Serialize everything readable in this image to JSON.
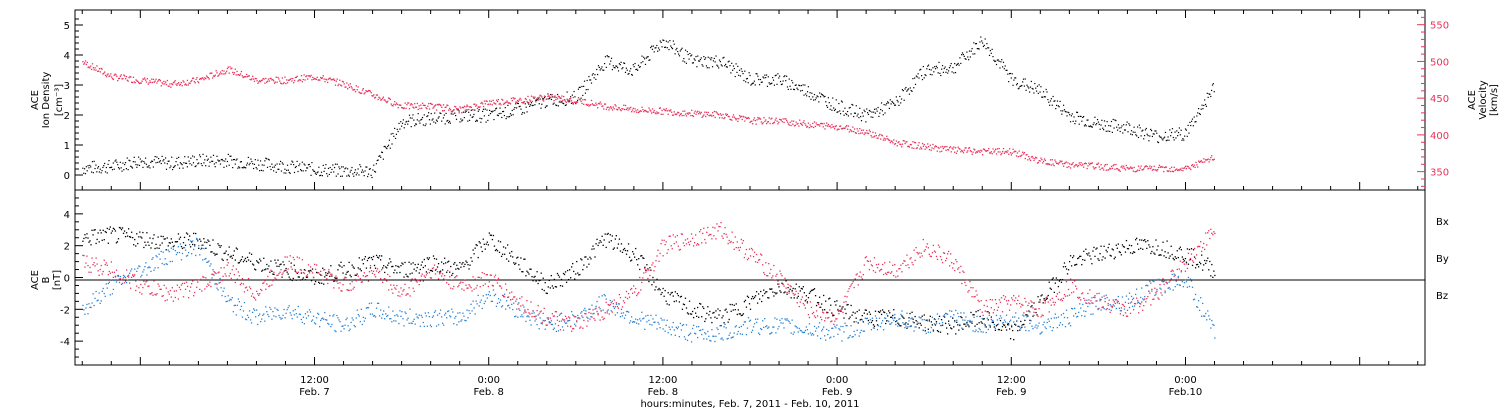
{
  "colors": {
    "black": "#000000",
    "pink": "#e8325a",
    "blue": "#2b83d6"
  },
  "xaxis": {
    "title": "hours:minutes, Feb.  7, 2011 - Feb. 10, 2011",
    "ticks": [
      {
        "hour": 12,
        "time": "12:00",
        "date": "Feb. 7"
      },
      {
        "hour": 24,
        "time": "0:00",
        "date": "Feb. 8"
      },
      {
        "hour": 36,
        "time": "12:00",
        "date": "Feb. 8"
      },
      {
        "hour": 48,
        "time": "0:00",
        "date": "Feb. 9"
      },
      {
        "hour": 60,
        "time": "12:00",
        "date": "Feb. 9"
      },
      {
        "hour": 72,
        "time": "0:00",
        "date": "Feb.10"
      }
    ]
  },
  "top_panel": {
    "left_label": [
      "ACE",
      "Ion Density",
      "[cm⁻³]"
    ],
    "right_label": [
      "ACE",
      "Velocity",
      "[km/s]"
    ],
    "left_ticks": [
      "0",
      "1",
      "2",
      "3",
      "4",
      "5"
    ],
    "right_ticks": [
      "350",
      "400",
      "450",
      "500",
      "550"
    ]
  },
  "bottom_panel": {
    "left_label": [
      "ACE",
      "B",
      "[nT]"
    ],
    "ticks": [
      "4",
      "2",
      "0",
      "-2",
      "-4"
    ],
    "legend": [
      "Bx",
      "By",
      "Bz"
    ]
  },
  "chart_data": [
    {
      "type": "scatter",
      "panel": "top",
      "x_unit": "hours since Feb. 7 00:00",
      "xlim": [
        -4.5,
        88.5
      ],
      "series": [
        {
          "axis": "left",
          "ylim": [
            -0.5,
            5.5
          ],
          "x": [
            -4,
            -2,
            0,
            2,
            4,
            6,
            8,
            10,
            12,
            14,
            16,
            18,
            20,
            22,
            24,
            26,
            28,
            30,
            32,
            34,
            36,
            38,
            40,
            42,
            44,
            46,
            48,
            50,
            52,
            54,
            56,
            58,
            60,
            62,
            64,
            66,
            68,
            70,
            72,
            74
          ],
          "y": [
            0.25,
            0.3,
            0.5,
            0.4,
            0.5,
            0.5,
            0.4,
            0.3,
            0.2,
            0.15,
            0.15,
            1.8,
            1.9,
            2.0,
            2.0,
            2.2,
            2.5,
            2.6,
            3.8,
            3.5,
            4.5,
            3.8,
            3.8,
            3.2,
            3.2,
            2.8,
            2.3,
            2.0,
            2.4,
            3.5,
            3.6,
            4.5,
            3.2,
            2.8,
            2.0,
            1.7,
            1.6,
            1.3,
            1.4,
            3.0
          ]
        },
        {
          "axis": "right",
          "ylim": [
            325,
            570
          ],
          "x": [
            -4,
            -2,
            0,
            2,
            4,
            6,
            8,
            10,
            12,
            14,
            16,
            18,
            20,
            22,
            24,
            26,
            28,
            30,
            32,
            34,
            36,
            38,
            40,
            42,
            44,
            46,
            48,
            50,
            52,
            54,
            56,
            58,
            60,
            62,
            64,
            66,
            68,
            70,
            72,
            74
          ],
          "y": [
            500,
            480,
            475,
            470,
            475,
            490,
            475,
            475,
            480,
            470,
            455,
            440,
            440,
            435,
            445,
            448,
            452,
            448,
            440,
            435,
            433,
            430,
            428,
            420,
            420,
            415,
            412,
            405,
            390,
            385,
            380,
            378,
            378,
            365,
            360,
            358,
            355,
            355,
            355,
            370
          ]
        }
      ]
    },
    {
      "type": "scatter",
      "panel": "bottom",
      "x_unit": "hours since Feb. 7 00:00",
      "xlim": [
        -4.5,
        88.5
      ],
      "ylim": [
        -5.5,
        5.5
      ],
      "series": [
        {
          "name": "Bx",
          "x": [
            -4,
            -2,
            0,
            2,
            4,
            6,
            8,
            10,
            12,
            14,
            16,
            18,
            20,
            22,
            24,
            26,
            28,
            30,
            32,
            34,
            36,
            38,
            40,
            42,
            44,
            46,
            48,
            50,
            52,
            54,
            56,
            58,
            60,
            62,
            64,
            66,
            68,
            70,
            72,
            74
          ],
          "y": [
            2.5,
            2.7,
            2.5,
            2.2,
            2.4,
            1.5,
            1.0,
            0.5,
            0.0,
            0.5,
            1.0,
            0.5,
            1.0,
            0.5,
            2.5,
            1.0,
            -0.5,
            0.5,
            2.5,
            1.5,
            -1.0,
            -2.0,
            -2.5,
            -1.5,
            -0.5,
            -1.0,
            -2.0,
            -2.5,
            -2.5,
            -2.8,
            -3.0,
            -2.5,
            -3.5,
            -1.5,
            1.0,
            1.5,
            2.0,
            2.0,
            1.5,
            0.5
          ]
        },
        {
          "name": "By",
          "x": [
            -4,
            -2,
            0,
            2,
            4,
            6,
            8,
            10,
            12,
            14,
            16,
            18,
            20,
            22,
            24,
            26,
            28,
            30,
            32,
            34,
            36,
            38,
            40,
            42,
            44,
            46,
            48,
            50,
            52,
            54,
            56,
            58,
            60,
            62,
            64,
            66,
            68,
            70,
            72,
            74
          ],
          "y": [
            -2.0,
            -0.5,
            0.5,
            1.5,
            2.0,
            -1.5,
            -2.5,
            -2.0,
            -2.5,
            -3.0,
            -2.0,
            -2.5,
            -2.5,
            -2.5,
            -1.0,
            -2.0,
            -3.0,
            -2.5,
            -1.5,
            -2.5,
            -3.0,
            -3.5,
            -3.5,
            -3.0,
            -3.0,
            -3.2,
            -3.5,
            -3.0,
            -2.5,
            -3.0,
            -2.5,
            -3.0,
            -2.5,
            -3.0,
            -2.5,
            -1.5,
            -1.5,
            -0.5,
            0.0,
            -3.5
          ]
        },
        {
          "name": "Bz",
          "x": [
            -4,
            -2,
            0,
            2,
            4,
            6,
            8,
            10,
            12,
            14,
            16,
            18,
            20,
            22,
            24,
            26,
            28,
            30,
            32,
            34,
            36,
            38,
            40,
            42,
            44,
            46,
            48,
            50,
            52,
            54,
            56,
            58,
            60,
            62,
            64,
            66,
            68,
            70,
            72,
            74
          ],
          "y": [
            1.0,
            0.5,
            -0.5,
            -1.0,
            -0.5,
            0.5,
            -1.0,
            1.0,
            0.5,
            -0.5,
            0.5,
            -1.0,
            0.5,
            -0.5,
            0.0,
            -1.5,
            -2.5,
            -3.0,
            -2.0,
            -1.0,
            2.0,
            2.5,
            3.0,
            1.5,
            0.0,
            -2.0,
            -2.5,
            1.0,
            0.5,
            2.0,
            1.0,
            -2.0,
            -1.5,
            -2.0,
            -0.5,
            -1.5,
            -2.0,
            -1.0,
            1.0,
            3.0
          ]
        }
      ]
    }
  ]
}
